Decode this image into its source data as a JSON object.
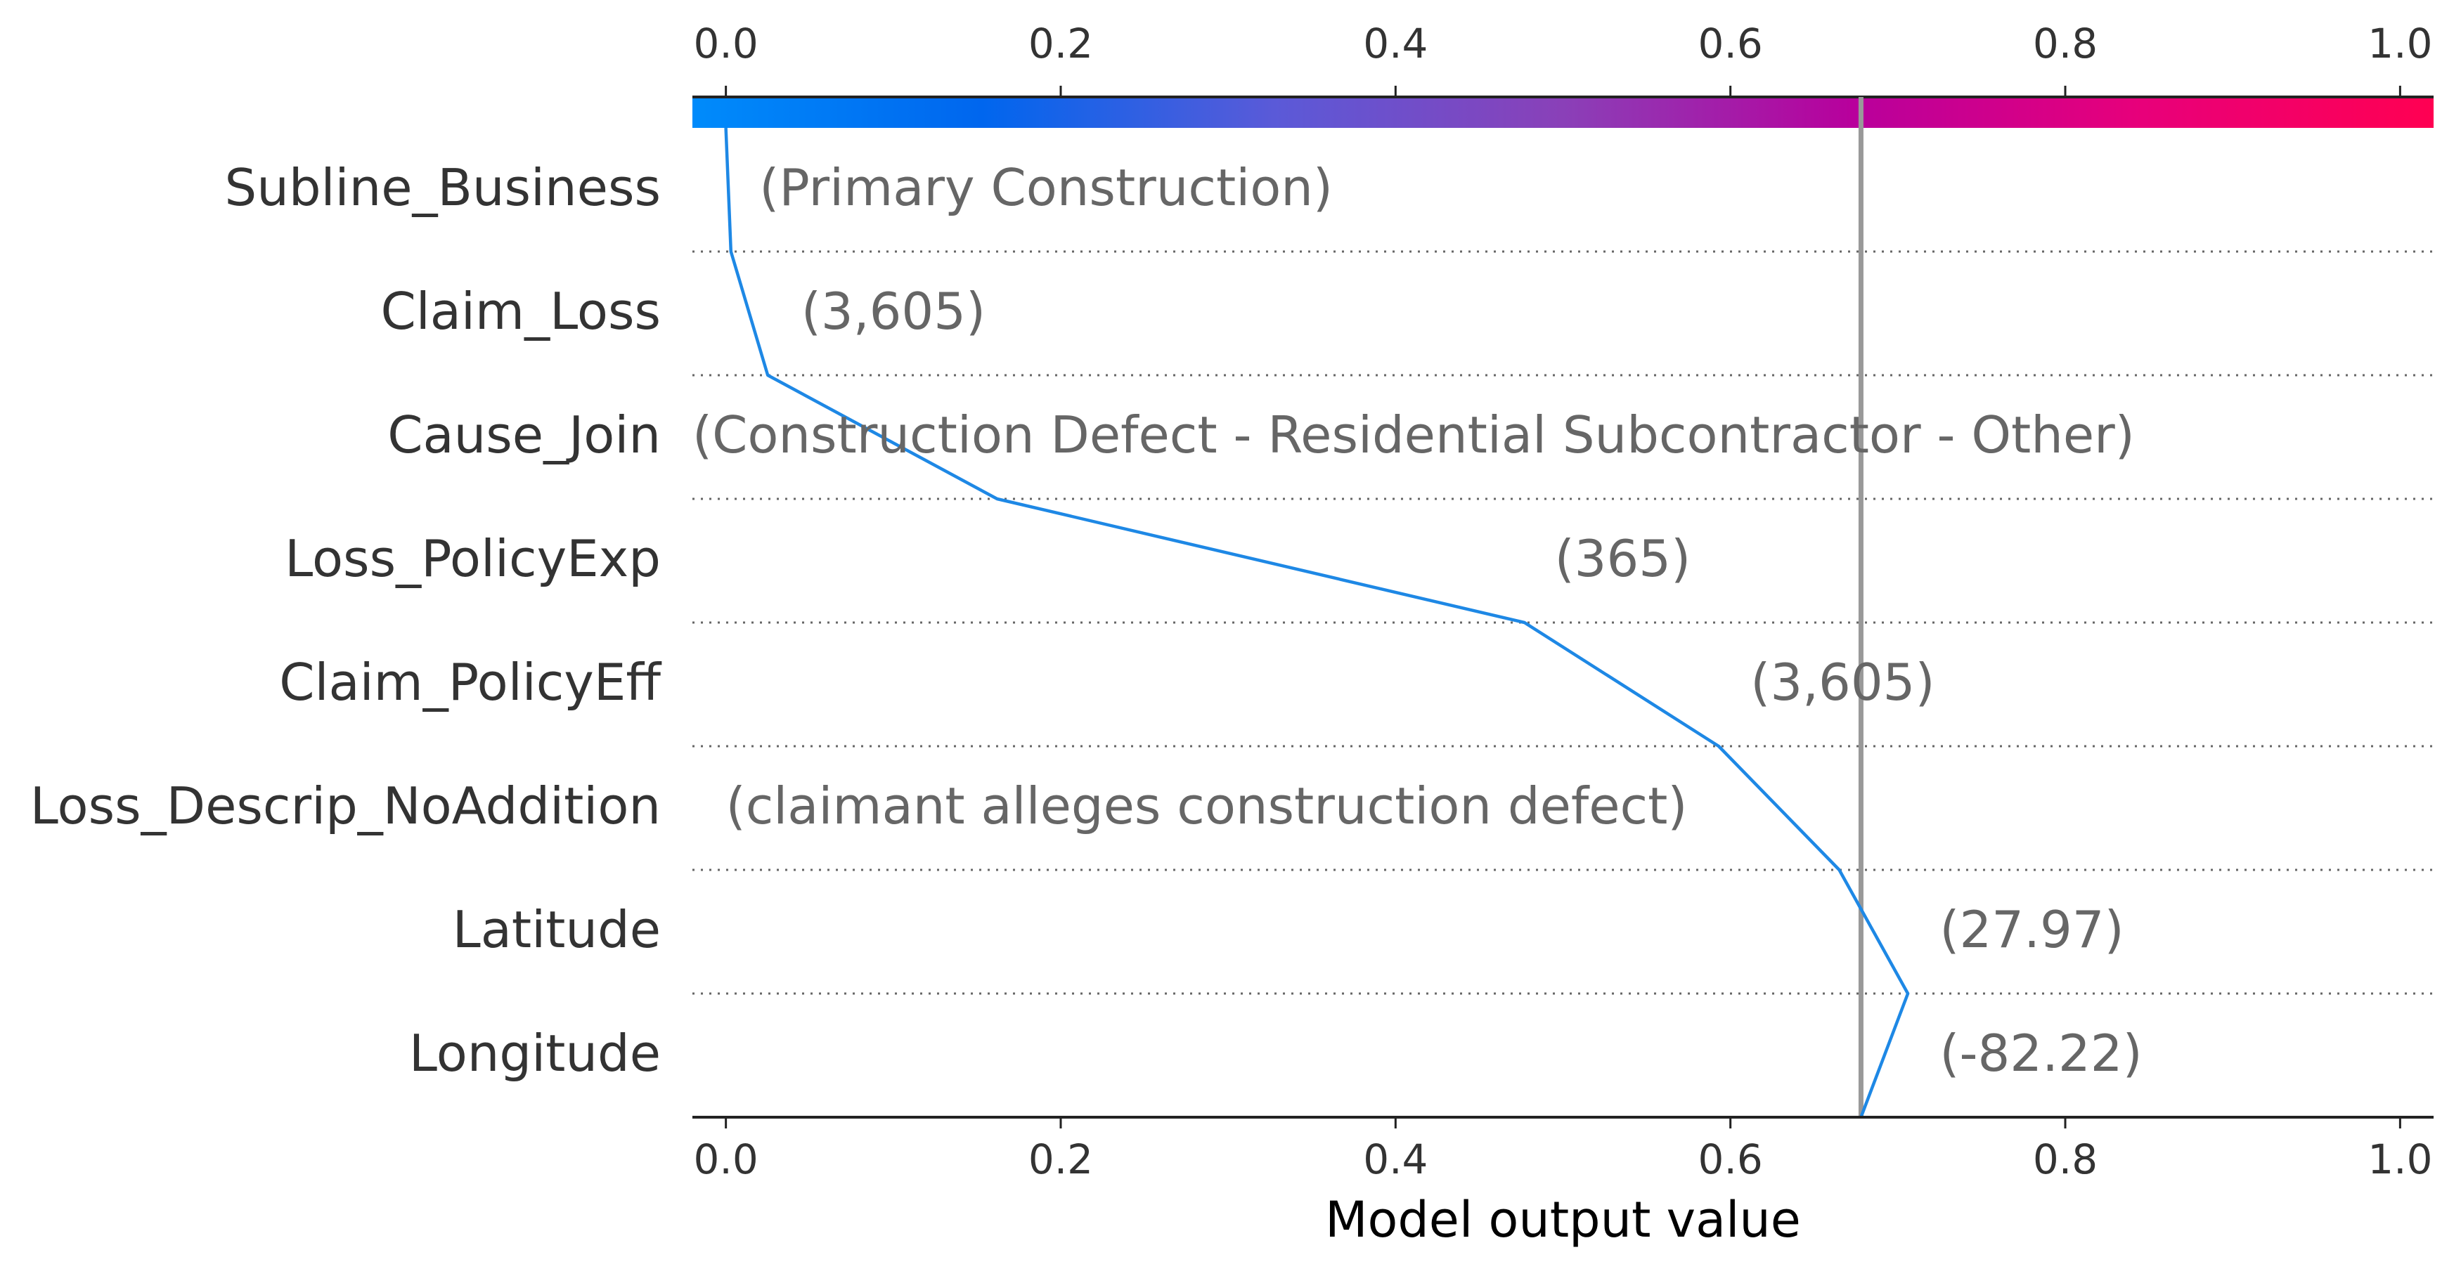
{
  "chart_data": {
    "type": "line",
    "subtype": "decision-plot",
    "xlabel": "Model output value",
    "xlim": [
      -0.02,
      1.02
    ],
    "x_ticks": [
      "0.0",
      "0.2",
      "0.4",
      "0.6",
      "0.8",
      "1.0"
    ],
    "x_tick_values": [
      0.0,
      0.2,
      0.4,
      0.6,
      0.8,
      1.0
    ],
    "base_value": 0.678,
    "colorbar": {
      "range": [
        0,
        1
      ],
      "colors": [
        "#008bfb",
        "#0066ee",
        "#5a5ad8",
        "#8a40b8",
        "#b8009c",
        "#e8007a",
        "#ff0052"
      ]
    },
    "line_color": "#1e88e5",
    "reference_line_color": "#999999",
    "features": [
      {
        "name": "Subline_Business",
        "value_label": "(Primary Construction)",
        "x": 0.003
      },
      {
        "name": "Claim_Loss",
        "value_label": "(3,605)",
        "x": 0.025
      },
      {
        "name": "Cause_Join",
        "value_label": "(Construction Defect - Residential Subcontractor - Other)",
        "x": 0.162
      },
      {
        "name": "Loss_PolicyExp",
        "value_label": "(365)",
        "x": 0.477
      },
      {
        "name": "Claim_PolicyEff",
        "value_label": "(3,605)",
        "x": 0.593
      },
      {
        "name": "Loss_Descrip_NoAddition",
        "value_label": "(claimant alleges construction defect)",
        "x": 0.665
      },
      {
        "name": "Latitude",
        "value_label": "(27.97)",
        "x": 0.706
      },
      {
        "name": "Longitude",
        "value_label": "(-82.22)",
        "x": 0.678
      }
    ],
    "path_x": [
      0.0,
      0.003,
      0.025,
      0.162,
      0.477,
      0.593,
      0.665,
      0.706,
      0.678
    ]
  }
}
